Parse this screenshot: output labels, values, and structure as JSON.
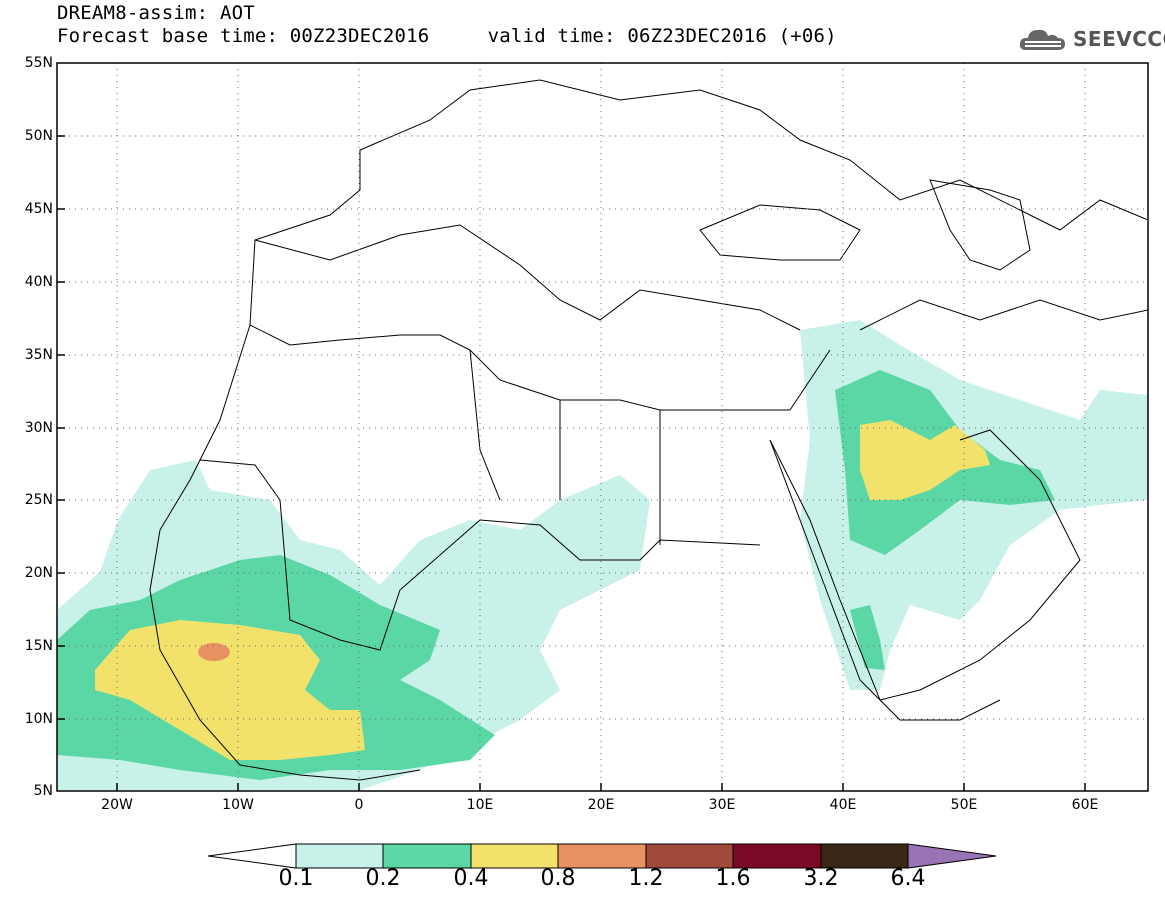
{
  "header": {
    "title": "DREAM8-assim: AOT",
    "base_time_label": "Forecast base time: 00Z23DEC2016",
    "valid_time_label": "valid time: 06Z23DEC2016 (+06)"
  },
  "logo": {
    "text": "SEEVCCC",
    "icon": "cloud-logo-icon"
  },
  "map": {
    "lon_range": [
      -25,
      65
    ],
    "lat_range": [
      5,
      55
    ],
    "lat_ticks": [
      "5N",
      "10N",
      "15N",
      "20N",
      "25N",
      "30N",
      "35N",
      "40N",
      "45N",
      "50N",
      "55N"
    ],
    "lon_ticks": [
      "20W",
      "10W",
      "0",
      "10E",
      "20E",
      "30E",
      "40E",
      "50E",
      "60E"
    ],
    "grid": "dotted"
  },
  "colorbar": {
    "labels": [
      "0.1",
      "0.2",
      "0.4",
      "0.8",
      "1.2",
      "1.6",
      "3.2",
      "6.4"
    ],
    "colors": [
      "#ffffff",
      "#c8f1ea",
      "#5bd7a5",
      "#f2e26c",
      "#e89263",
      "#a24a3a",
      "#7a0a26",
      "#3c2616",
      "#9a72b6"
    ]
  }
}
